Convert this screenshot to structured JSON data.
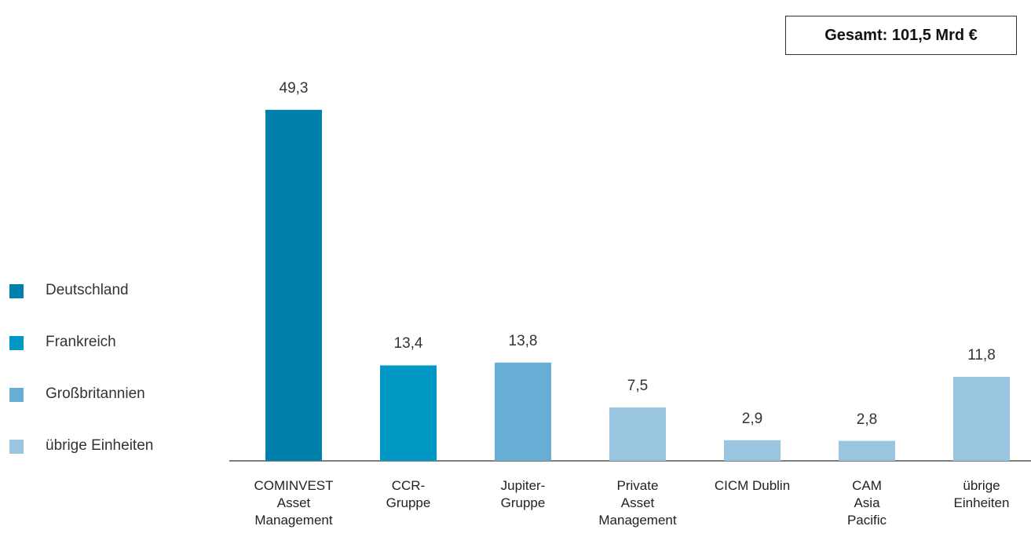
{
  "chart_data": {
    "type": "bar",
    "annotation": "Gesamt: 101,5 Mrd €",
    "categories": [
      "COMINVEST\nAsset\nManagement",
      "CCR-\nGruppe",
      "Jupiter-\nGruppe",
      "Private\nAsset\nManagement",
      "CICM Dublin",
      "CAM\nAsia\nPacific",
      "übrige\nEinheiten"
    ],
    "values": [
      49.3,
      13.4,
      13.8,
      7.5,
      2.9,
      2.8,
      11.8
    ],
    "value_labels": [
      "49,3",
      "13,4",
      "13,8",
      "7,5",
      "2,9",
      "2,8",
      "11,8"
    ],
    "colors": [
      "#0080aa",
      "#0099c6",
      "#66aed4",
      "#99c5e0",
      "#99c5e0",
      "#99c5e0",
      "#99c5e0"
    ],
    "legend": [
      {
        "name": "Deutschland",
        "color": "#0080aa"
      },
      {
        "name": "Frankreich",
        "color": "#0099c6"
      },
      {
        "name": "Großbritannien",
        "color": "#66aed4"
      },
      {
        "name": "übrige Einheiten",
        "color": "#99c5e0"
      }
    ],
    "ylim": [
      0,
      50
    ]
  }
}
